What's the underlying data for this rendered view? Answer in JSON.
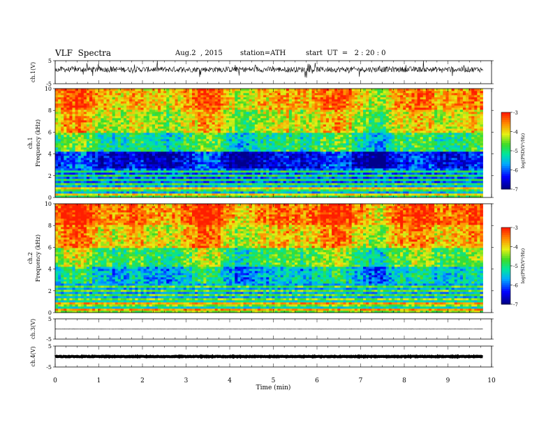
{
  "header": {
    "title": "VLF  Spectra",
    "date": "Aug.2  , 2015",
    "station": "station=ATH",
    "start": "start  UT  =   2 : 20 : 0"
  },
  "chart_data": {
    "type": "heatmap",
    "x": {
      "label": "Time  (min)",
      "range": [
        0,
        10
      ],
      "ticks": [
        "0",
        "1",
        "2",
        "3",
        "4",
        "5",
        "6",
        "7",
        "8",
        "9",
        "10"
      ],
      "data_end": 9.8
    },
    "panels": [
      {
        "kind": "waveform",
        "ylabel": "ch.1(V)",
        "ylim": [
          -5,
          5
        ],
        "ticks": [
          "5",
          "-5"
        ],
        "noise": 1.2
      },
      {
        "kind": "spectrogram",
        "ylabel": "ch.1\nFrequency (kHz)",
        "ylim": [
          0,
          10
        ],
        "ticks": [
          "0",
          "2",
          "4",
          "6",
          "8",
          "10"
        ],
        "colorbar": {
          "label": "log(PSD(V²/Hz)",
          "ticks": [
            "-3",
            "-4",
            "-5",
            "-6",
            "-7"
          ],
          "range": [
            -7,
            -3
          ]
        }
      },
      {
        "kind": "spectrogram",
        "ylabel": "ch.2\nFrequency (kHz)",
        "ylim": [
          0,
          10
        ],
        "ticks": [
          "0",
          "2",
          "4",
          "6",
          "8",
          "10"
        ],
        "colorbar": {
          "label": "log(PSD(V²/Hz)",
          "ticks": [
            "-3",
            "-4",
            "-5",
            "-6",
            "-7"
          ],
          "range": [
            -7,
            -3
          ]
        }
      },
      {
        "kind": "waveform",
        "ylabel": "ch.3(V)",
        "ylim": [
          -5,
          5
        ],
        "ticks": [
          "5",
          "-5"
        ],
        "noise": 0.1
      },
      {
        "kind": "waveform",
        "ylabel": "ch.4(V)",
        "ylim": [
          -5,
          5
        ],
        "ticks": [
          "5",
          "-5"
        ],
        "noise": 0.15
      }
    ]
  }
}
